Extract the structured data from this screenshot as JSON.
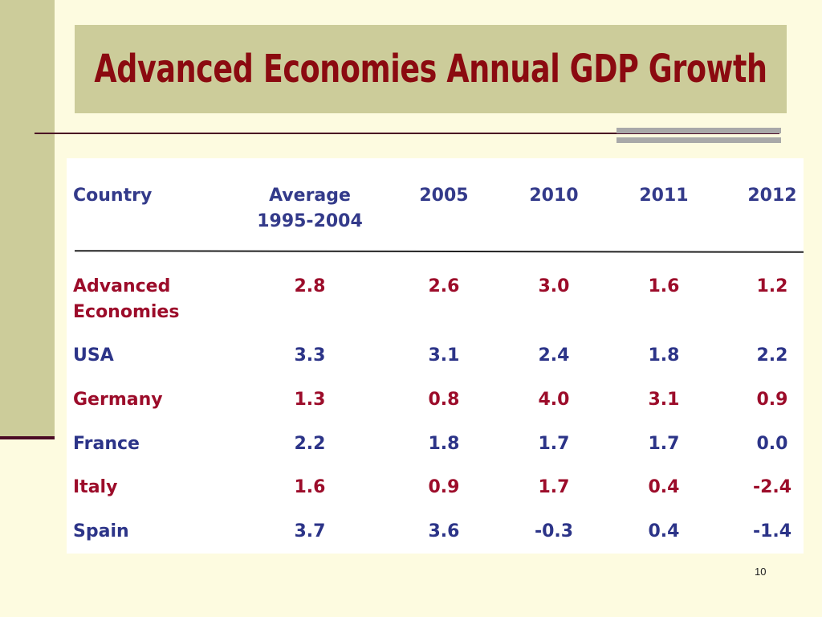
{
  "title": "Advanced Economies Annual GDP Growth",
  "page_number": "10",
  "table": {
    "headers": [
      "Country",
      "Average\n1995-2004",
      "2005",
      "2010",
      "2011",
      "2012"
    ],
    "header_country": "Country",
    "header_avg_line1": "Average",
    "header_avg_line2": "1995-2004",
    "header_2005": "2005",
    "header_2010": "2010",
    "header_2011": "2011",
    "header_2012": "2012",
    "rows": [
      {
        "country_line1": "Advanced",
        "country_line2": "Economies",
        "values": [
          "2.8",
          "2.6",
          "3.0",
          "1.6",
          "1.2"
        ],
        "color": "#9c0c2a"
      },
      {
        "country_line1": "USA",
        "country_line2": "",
        "values": [
          "3.3",
          "3.1",
          "2.4",
          "1.8",
          "2.2"
        ],
        "color": "#2c3488"
      },
      {
        "country_line1": "Germany",
        "country_line2": "",
        "values": [
          "1.3",
          "0.8",
          "4.0",
          "3.1",
          "0.9"
        ],
        "color": "#9c0c2a"
      },
      {
        "country_line1": "France",
        "country_line2": "",
        "values": [
          "2.2",
          "1.8",
          "1.7",
          "1.7",
          "0.0"
        ],
        "color": "#2c3488"
      },
      {
        "country_line1": "Italy",
        "country_line2": "",
        "values": [
          "1.6",
          "0.9",
          "1.7",
          "0.4",
          "-2.4"
        ],
        "color": "#9c0c2a"
      },
      {
        "country_line1": "Spain",
        "country_line2": "",
        "values": [
          "3.7",
          "3.6",
          "-0.3",
          "0.4",
          "-1.4"
        ],
        "color": "#2c3488"
      }
    ]
  },
  "colors": {
    "title": "#8b0a10",
    "header": "#333a8a",
    "red_rows": "#9c0c2a",
    "blue_rows": "#2c3488",
    "band": "#cccc9a",
    "background": "#fdfbe0"
  }
}
